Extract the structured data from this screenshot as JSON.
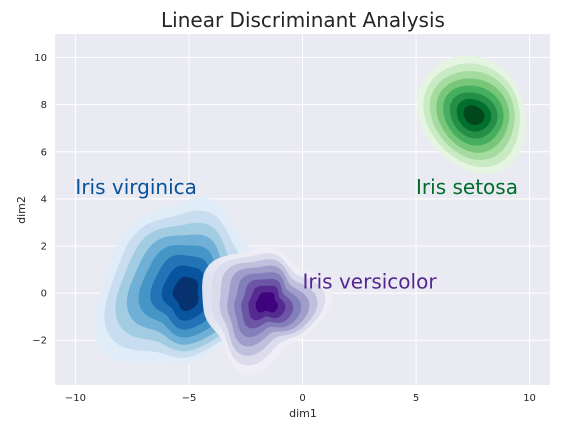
{
  "chart_data": {
    "type": "contour",
    "title": "Linear Discriminant Analysis",
    "xlabel": "dim1",
    "ylabel": "dim2",
    "xlim": [
      -10.9,
      10.9
    ],
    "ylim": [
      -3.9,
      11.0
    ],
    "x_ticks": [
      -10,
      -5,
      0,
      5,
      10
    ],
    "y_ticks": [
      -2,
      0,
      2,
      4,
      6,
      8,
      10
    ],
    "x_tick_labels": [
      "−10",
      "−5",
      "0",
      "5",
      "10"
    ],
    "y_tick_labels": [
      "−2",
      "0",
      "2",
      "4",
      "6",
      "8",
      "10"
    ],
    "grid": true,
    "background": "#eaeaf2",
    "series": [
      {
        "name": "Iris virginica",
        "label_pos": [
          -10,
          4.2
        ],
        "center": [
          -5.5,
          0.3
        ],
        "spread": [
          1.3,
          1.6
        ],
        "colors": [
          "#deebf7",
          "#c6dbef",
          "#9ecae1",
          "#6baed6",
          "#4292c6",
          "#2171b5",
          "#08519c",
          "#08306b"
        ],
        "label_color": "#08519c"
      },
      {
        "name": "Iris versicolor",
        "label_pos": [
          0,
          0.2
        ],
        "center": [
          -1.8,
          -0.5
        ],
        "spread": [
          1.1,
          1.0
        ],
        "colors": [
          "#efedf5",
          "#dadaeb",
          "#bcbddc",
          "#9e9ac8",
          "#807dba",
          "#6a51a3",
          "#54278f",
          "#3f007d"
        ],
        "label_color": "#54278f"
      },
      {
        "name": "Iris setosa",
        "label_pos": [
          5,
          4.2
        ],
        "center": [
          7.5,
          7.6
        ],
        "spread": [
          0.9,
          1.1
        ],
        "colors": [
          "#e5f5e0",
          "#c7e9c0",
          "#a1d99b",
          "#74c476",
          "#41ab5d",
          "#238b45",
          "#006d2c",
          "#00441b"
        ],
        "label_color": "#006d2c"
      }
    ]
  }
}
